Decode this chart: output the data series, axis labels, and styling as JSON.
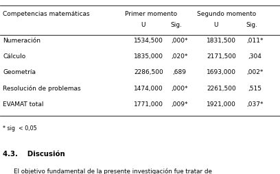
{
  "title": "",
  "header1": "Competencias matemáticas",
  "header2": "Primer momento",
  "header3": "Segundo momento",
  "subheader_u1": "U",
  "subheader_sig1": "Sig.",
  "subheader_u2": "U",
  "subheader_sig2": "Sig.",
  "rows": [
    [
      "Numeración",
      "1534,500",
      ",000*",
      "1831,500",
      ",011*"
    ],
    [
      "Cálculo",
      "1835,000",
      ",020*",
      "2171,500",
      ",304"
    ],
    [
      "Geometría",
      "2286,500",
      ",689",
      "1693,000",
      ",002*"
    ],
    [
      "Resolución de problemas",
      "1474,000",
      ",000*",
      "2261,500",
      ",515"
    ],
    [
      "EVAMAT total",
      "1771,000",
      ",009*",
      "1921,000",
      ",037*"
    ]
  ],
  "footnote": "* sig  < 0,05",
  "section_title": "4.3.    Discusión",
  "section_text": "El objetivo fundamental de la presente investigación fue tratar de",
  "bg_color": "#ffffff",
  "text_color": "#000000",
  "header_color": "#000000",
  "line_color": "#000000",
  "watermark_color": "#e0e0e0"
}
